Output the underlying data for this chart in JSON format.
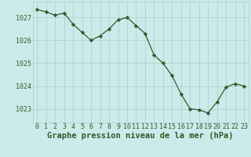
{
  "x": [
    0,
    1,
    2,
    3,
    4,
    5,
    6,
    7,
    8,
    9,
    10,
    11,
    12,
    13,
    14,
    15,
    16,
    17,
    18,
    19,
    20,
    21,
    22,
    23
  ],
  "y": [
    1027.35,
    1027.25,
    1027.1,
    1027.2,
    1026.7,
    1026.35,
    1026.0,
    1026.2,
    1026.5,
    1026.9,
    1027.0,
    1026.65,
    1026.3,
    1025.35,
    1025.0,
    1024.45,
    1023.65,
    1023.0,
    1022.95,
    1022.82,
    1023.3,
    1023.95,
    1024.1,
    1024.0
  ],
  "line_color": "#2a5e2a",
  "marker_color": "#2a5e2a",
  "bg_color": "#cdeaea",
  "grid_color": "#a8cccc",
  "tick_label_color": "#2a5e2a",
  "xlabel": "Graphe pression niveau de la mer (hPa)",
  "xlabel_color": "#2a5e2a",
  "ylim": [
    1022.4,
    1027.7
  ],
  "yticks": [
    1023,
    1024,
    1025,
    1026,
    1027
  ],
  "xticks": [
    0,
    1,
    2,
    3,
    4,
    5,
    6,
    7,
    8,
    9,
    10,
    11,
    12,
    13,
    14,
    15,
    16,
    17,
    18,
    19,
    20,
    21,
    22,
    23
  ],
  "tick_fontsize": 6.0,
  "xlabel_fontsize": 7.5
}
